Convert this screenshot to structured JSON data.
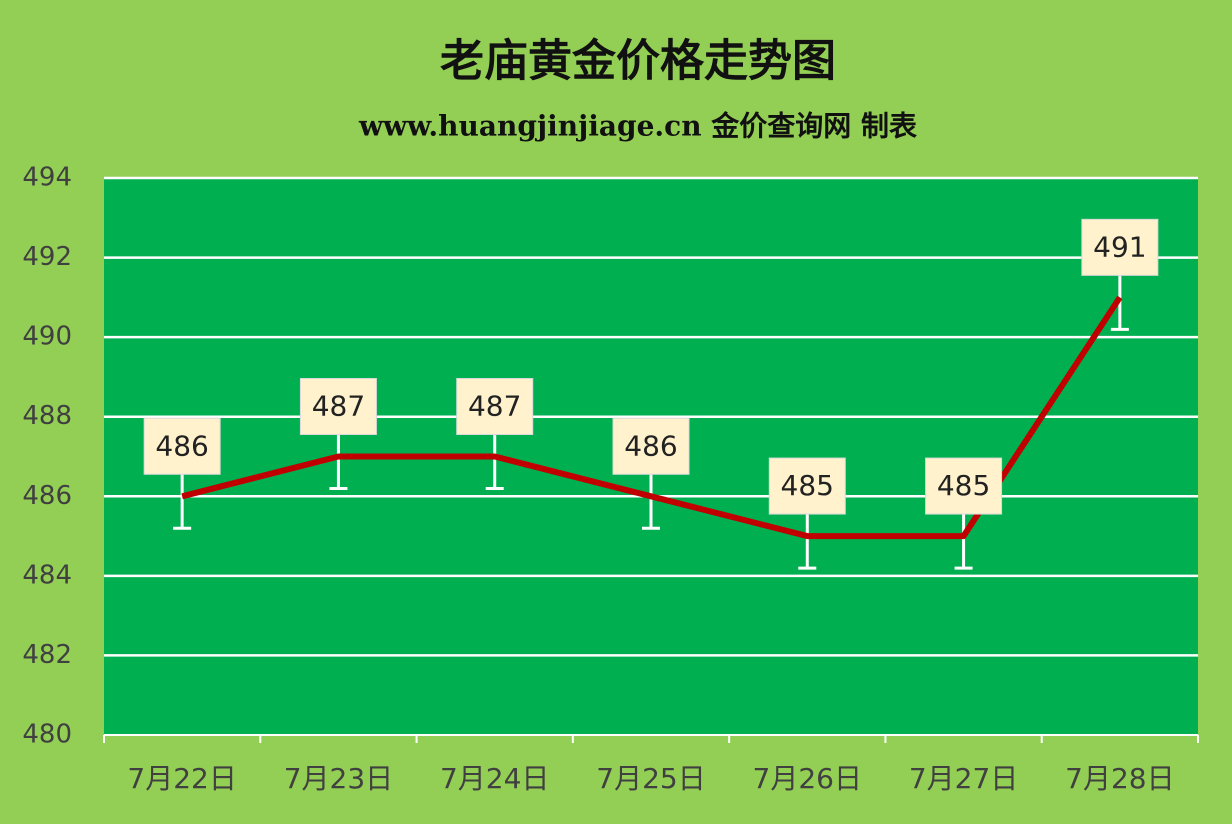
{
  "chart_data": {
    "type": "line",
    "title": "老庙黄金价格走势图",
    "subtitle": "www.huangjinjiage.cn 金价查询网 制表",
    "categories": [
      "7月22日",
      "7月23日",
      "7月24日",
      "7月25日",
      "7月26日",
      "7月27日",
      "7月28日"
    ],
    "values": [
      486,
      487,
      487,
      486,
      485,
      485,
      491
    ],
    "color": "#c00000",
    "ylim": [
      480,
      494
    ],
    "yticks": [
      480,
      482,
      484,
      486,
      488,
      490,
      492,
      494
    ],
    "grid": true
  }
}
